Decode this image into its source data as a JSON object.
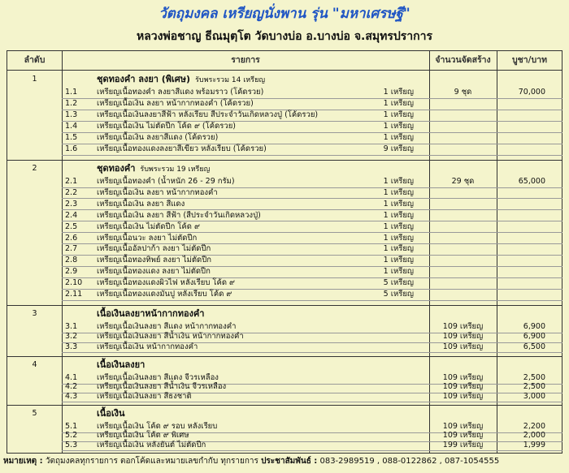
{
  "header": {
    "title": "วัตถุมงคล เหรียญนั่งพาน รุ่น \"มหาเศรษฐี\"",
    "subtitle": "หลวงพ่อชาญ ธีณมุตฺโต วัดบางบ่อ อ.บางบ่อ จ.สมุทรปราการ"
  },
  "table": {
    "columns": [
      "ลำดับ",
      "รายการ",
      "จำนวนจัดสร้าง",
      "บูชา/บาท"
    ],
    "groups": [
      {
        "no": "1",
        "title": "ชุดทองคำ ลงยา (พิเศษ)",
        "note": "รับพระรวม 14 เหรียญ",
        "quantity": "9 ชุด",
        "price": "70,000",
        "items": [
          {
            "no": "1.1",
            "name": "เหรียญเนื้อทองคำ ลงยาสีแดง พร้อมราว (โค้ดรวย)",
            "count": "1 เหรียญ"
          },
          {
            "no": "1.2",
            "name": "เหรียญเนื้อเงิน ลงยา หน้ากากทองคำ (โค้ดรวย)",
            "count": "1 เหรียญ"
          },
          {
            "no": "1.3",
            "name": "เหรียญเนื้อเงินลงยาสีฟ้า หลังเรียบ สีประจำวันเกิดหลวงปู่ (โค้ดรวย)",
            "count": "1 เหรียญ"
          },
          {
            "no": "1.4",
            "name": "เหรียญเนื้อเงิน ไม่ตัดปีก โค้ด ๙ (โค้ดรวย)",
            "count": "1 เหรียญ"
          },
          {
            "no": "1.5",
            "name": "เหรียญเนื้อเงิน ลงยาสีแดง (โค้ดรวย)",
            "count": "1 เหรียญ"
          },
          {
            "no": "1.6",
            "name": "เหรียญเนื้อทองแดงลงยาสีเขียว หลังเรียบ (โค้ดรวย)",
            "count": "9 เหรียญ"
          }
        ]
      },
      {
        "no": "2",
        "title": "ชุดทองคำ",
        "note": "รับพระรวม 19 เหรียญ",
        "quantity": "29 ชุด",
        "price": "65,000",
        "items": [
          {
            "no": "2.1",
            "name": "เหรียญเนื้อทองคำ (น้ำหนัก 26 - 29 กรัม)",
            "count": "1 เหรียญ"
          },
          {
            "no": "2.2",
            "name": "เหรียญเนื้อเงิน ลงยา หน้ากากทองคำ",
            "count": "1 เหรียญ"
          },
          {
            "no": "2.3",
            "name": "เหรียญเนื้อเงิน ลงยา สีแดง",
            "count": "1 เหรียญ"
          },
          {
            "no": "2.4",
            "name": "เหรียญเนื้อเงิน ลงยา สีฟ้า (สีประจำวันเกิดหลวงปู่)",
            "count": "1 เหรียญ"
          },
          {
            "no": "2.5",
            "name": "เหรียญเนื้อเงิน ไม่ตัดปีก โค้ด ๙",
            "count": "1 เหรียญ"
          },
          {
            "no": "2.6",
            "name": "เหรียญเนื้อนวะ ลงยา ไม่ตัดปีก",
            "count": "1 เหรียญ"
          },
          {
            "no": "2.7",
            "name": "เหรียญเนื้ออัลปาก้า ลงยา ไม่ตัดปีก",
            "count": "1 เหรียญ"
          },
          {
            "no": "2.8",
            "name": "เหรียญเนื้อทองทิพย์ ลงยา ไม่ตัดปีก",
            "count": "1 เหรียญ"
          },
          {
            "no": "2.9",
            "name": "เหรียญเนื้อทองแดง ลงยา ไม่ตัดปีก",
            "count": "1 เหรียญ"
          },
          {
            "no": "2.10",
            "name": "เหรียญเนื้อทองแดงผิวไฟ หลังเรียบ โค้ด ๙",
            "count": "5 เหรียญ"
          },
          {
            "no": "2.11",
            "name": "เหรียญเนื้อทองแดงมันปู หลังเรียบ โค้ด ๙",
            "count": "5 เหรียญ"
          }
        ]
      },
      {
        "no": "3",
        "title": "เนื้อเงินลงยาหน้ากากทองคำ",
        "items": [
          {
            "no": "3.1",
            "name": "เหรียญเนื้อเงินลงยา สีแดง หน้ากากทองคำ",
            "quantity": "109 เหรียญ",
            "price": "6,900"
          },
          {
            "no": "3.2",
            "name": "เหรียญเนื้อเงินลงยา สีน้ำเงิน หน้ากากทองคำ",
            "quantity": "109 เหรียญ",
            "price": "6,900"
          },
          {
            "no": "3.3",
            "name": "เหรียญเนื้อเงิน หน้ากากทองคำ",
            "quantity": "109 เหรียญ",
            "price": "6,500"
          }
        ]
      },
      {
        "no": "4",
        "title": "เนื้อเงินลงยา",
        "items": [
          {
            "no": "4.1",
            "name": "เหรียญเนื้อเงินลงยา สีแดง จีวรเหลือง",
            "quantity": "109 เหรียญ",
            "price": "2,500"
          },
          {
            "no": "4.2",
            "name": "เหรียญเนื้อเงินลงยา สีน้ำเงิน จีวรเหลือง",
            "quantity": "109 เหรียญ",
            "price": "2,500"
          },
          {
            "no": "4.3",
            "name": "เหรียญเนื้อเงินลงยา สีธงชาติ",
            "quantity": "109 เหรียญ",
            "price": "3,000"
          }
        ]
      },
      {
        "no": "5",
        "title": "เนื้อเงิน",
        "items": [
          {
            "no": "5.1",
            "name": "เหรียญเนื้อเงิน โค้ด ๙ รอบ หลังเรียบ",
            "quantity": "109 เหรียญ",
            "price": "2,200"
          },
          {
            "no": "5.2",
            "name": "เหรียญเนื้อเงิน โค้ด ๙ พิเศษ",
            "quantity": "109 เหรียญ",
            "price": "2,000"
          },
          {
            "no": "5.3",
            "name": "เหรียญเนื้อเงิน หลังยันต์ ไม่ตัดปีก",
            "quantity": "199 เหรียญ",
            "price": "1,999"
          }
        ]
      }
    ]
  },
  "footer": {
    "note_label": "หมายเหตุ :",
    "note": "วัตถุมงคลทุกรายการ ตอกโค้ดและหมายเลขกำกับ ทุกรายการ",
    "contact_label": "ประชาสัมพันธ์ :",
    "contact": "083-2989519 , 088-0122862 , 087-1054555"
  }
}
